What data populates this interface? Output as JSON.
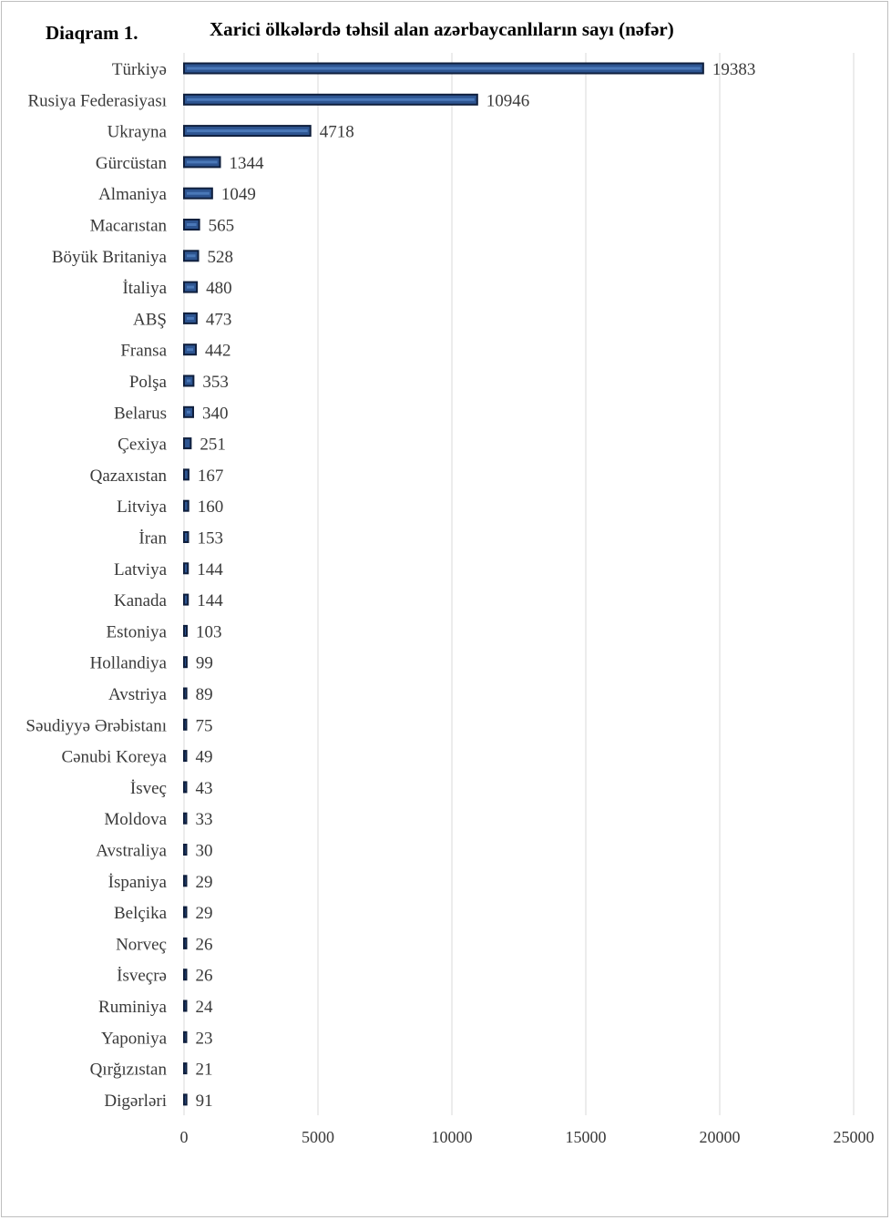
{
  "heading": {
    "diagram_label": "Diaqram 1.",
    "title": "Xarici ölkələrdə təhsil alan azərbaycanlıların sayı (nəfər)"
  },
  "colors": {
    "bar_fill": "#2e5591",
    "bar_outline": "#0f1f3d",
    "bar_highlight": "#4a78b8",
    "grid": "#d9d9d9",
    "text": "#3a3a3a"
  },
  "chart_data": {
    "type": "bar",
    "orientation": "horizontal",
    "title": "Xarici ölkələrdə təhsil alan azərbaycanlıların sayı (nəfər)",
    "categories": [
      "Türkiyə",
      "Rusiya Federasiyası",
      "Ukrayna",
      "Gürcüstan",
      "Almaniya",
      "Macarıstan",
      "Böyük Britaniya",
      "İtaliya",
      "ABŞ",
      "Fransa",
      "Polşa",
      "Belarus",
      "Çexiya",
      "Qazaxıstan",
      "Litviya",
      "İran",
      "Latviya",
      "Kanada",
      "Estoniya",
      "Hollandiya",
      "Avstriya",
      "Səudiyyə Ərəbistanı",
      "Cənubi Koreya",
      "İsveç",
      "Moldova",
      "Avstraliya",
      "İspaniya",
      "Belçika",
      "Norveç",
      "İsveçrə",
      "Ruminiya",
      "Yaponiya",
      "Qırğızıstan",
      "Digərləri"
    ],
    "values": [
      19383,
      10946,
      4718,
      1344,
      1049,
      565,
      528,
      480,
      473,
      442,
      353,
      340,
      251,
      167,
      160,
      153,
      144,
      144,
      103,
      99,
      89,
      75,
      49,
      43,
      33,
      30,
      29,
      29,
      26,
      26,
      24,
      23,
      21,
      91
    ],
    "xlim": [
      0,
      25000
    ],
    "xticks": [
      0,
      5000,
      10000,
      15000,
      20000,
      25000
    ],
    "grid": true,
    "data_labels": true,
    "legend": "none"
  }
}
